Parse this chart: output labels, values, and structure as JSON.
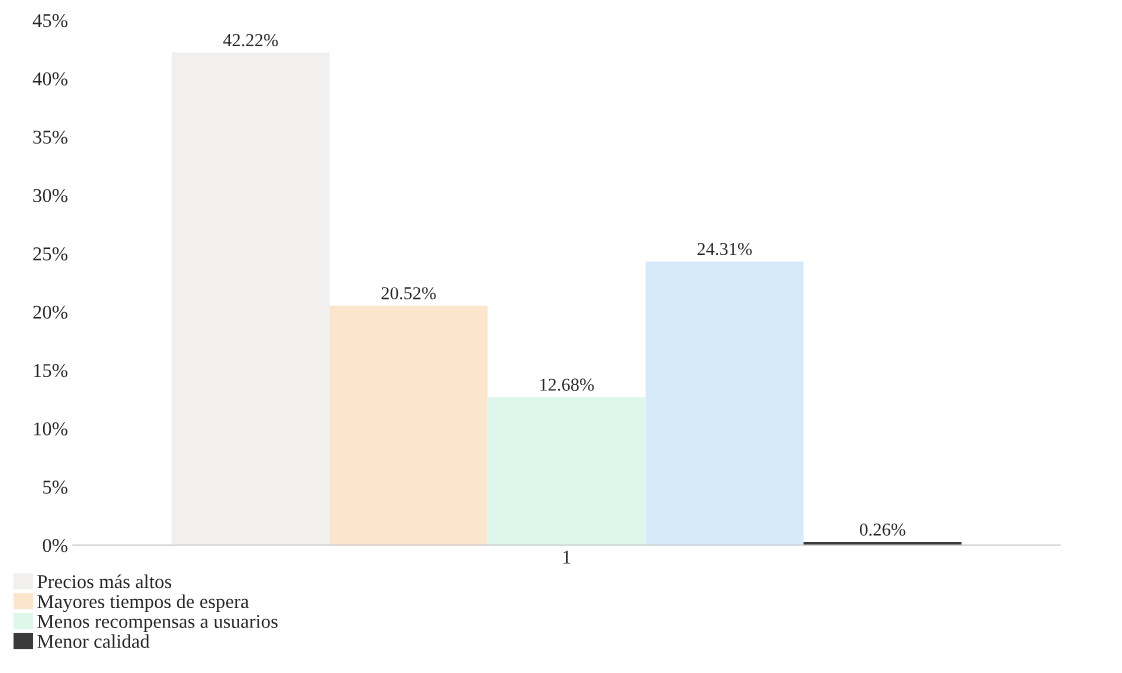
{
  "chart_data": {
    "type": "bar",
    "categories": [
      "1"
    ],
    "series": [
      {
        "name": "Precios más altos",
        "color": "#f2f0ef",
        "values": [
          42.22
        ],
        "value_labels": [
          "42.22%"
        ]
      },
      {
        "name": "Mayores tiempos de espera",
        "color": "#fce5cd",
        "values": [
          20.52
        ],
        "value_labels": [
          "20.52%"
        ]
      },
      {
        "name": "Menos recompensas a usuarios",
        "color": "#ddf7ea",
        "values": [
          12.68
        ],
        "value_labels": [
          "12.68%"
        ]
      },
      {
        "color": "#d6eafb",
        "values": [
          24.31
        ],
        "value_labels": [
          "24.31%"
        ]
      },
      {
        "name": "Menor calidad",
        "color": "#3a3a3a",
        "values": [
          0.26
        ],
        "value_labels": [
          "0.26%"
        ]
      }
    ],
    "ylim": [
      0,
      45
    ],
    "yticks": [
      {
        "value": 0,
        "label": "0%"
      },
      {
        "value": 5,
        "label": "5%"
      },
      {
        "value": 10,
        "label": "10%"
      },
      {
        "value": 15,
        "label": "15%"
      },
      {
        "value": 20,
        "label": "20%"
      },
      {
        "value": 25,
        "label": "25%"
      },
      {
        "value": 30,
        "label": "30%"
      },
      {
        "value": 35,
        "label": "35%"
      },
      {
        "value": 40,
        "label": "40%"
      },
      {
        "value": 45,
        "label": "45%"
      }
    ],
    "grid": false,
    "legend": "bottom left"
  }
}
